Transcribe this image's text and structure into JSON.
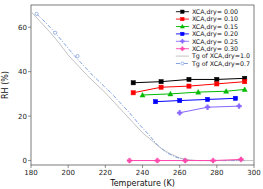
{
  "chart_data": {
    "type": "line",
    "xlabel": "Temperature (K)",
    "ylabel": "RH (%)",
    "xlim": [
      180,
      300
    ],
    "ylim": [
      -2,
      70
    ],
    "xticks": [
      180,
      200,
      220,
      240,
      260,
      280,
      300
    ],
    "yticks": [
      0,
      20,
      40,
      60
    ],
    "grid": false,
    "legend": "upper right",
    "series": [
      {
        "name": "XCA,dry= 0.00",
        "color": "#000000",
        "marker": "square",
        "line_style": "solid",
        "x": [
          235,
          250,
          265,
          280,
          295
        ],
        "values": [
          35.0,
          35.5,
          36.5,
          36.5,
          37.0
        ]
      },
      {
        "name": "XCA,dry= 0.10",
        "color": "#ff0000",
        "marker": "square",
        "line_style": "solid",
        "x": [
          235,
          250,
          265,
          280,
          295
        ],
        "values": [
          30.5,
          33.0,
          33.5,
          34.5,
          35.5
        ]
      },
      {
        "name": "XCA,dry= 0.15",
        "color": "#00bb00",
        "marker": "triangle",
        "line_style": "solid",
        "x": [
          240,
          255,
          270,
          285,
          295
        ],
        "values": [
          29.5,
          30.0,
          30.8,
          31.2,
          32.0
        ]
      },
      {
        "name": "XCA,dry= 0.20",
        "color": "#0000ff",
        "marker": "square",
        "line_style": "solid",
        "x": [
          247,
          260,
          275,
          290
        ],
        "values": [
          26.5,
          27.0,
          27.5,
          28.0
        ]
      },
      {
        "name": "XCA,dry= 0.25",
        "color": "#8866ff",
        "marker": "plus",
        "line_style": "solid",
        "x": [
          260,
          275,
          292
        ],
        "values": [
          21.5,
          24.0,
          24.5
        ]
      },
      {
        "name": "XCA,dry= 0.30",
        "color": "#ff44aa",
        "marker": "plus",
        "line_style": "solid",
        "x": [
          233,
          248,
          263,
          278,
          293
        ],
        "values": [
          0.0,
          0.0,
          0.0,
          0.0,
          0.5
        ]
      },
      {
        "name": "Tg of XCA,dry=1.0",
        "color": "#bbbbbb",
        "marker": "none",
        "line_style": "solid",
        "x": [
          180,
          185,
          190,
          195,
          200,
          205,
          210,
          215,
          220,
          225,
          230,
          235,
          240,
          245,
          250,
          255,
          260,
          265,
          270,
          280,
          290,
          300
        ],
        "values": [
          67.0,
          62.5,
          58.0,
          53.0,
          47.5,
          43.0,
          38.5,
          34.5,
          30.5,
          26.0,
          21.5,
          17.0,
          12.5,
          9.0,
          5.5,
          3.0,
          1.2,
          0.3,
          0.0,
          0.0,
          0.0,
          0.0
        ]
      },
      {
        "name": "Tg of XCA,dry=0.7",
        "color": "#7799dd",
        "marker": "circle",
        "line_style": "dashdot",
        "x": [
          183,
          188,
          193,
          198,
          203,
          208,
          213,
          218,
          223,
          228,
          233,
          238,
          243,
          248,
          253,
          258,
          263,
          268,
          275,
          285,
          295
        ],
        "values": [
          66.0,
          62.0,
          57.5,
          52.5,
          47.5,
          43.0,
          38.5,
          34.5,
          30.5,
          26.0,
          21.5,
          16.5,
          12.0,
          7.0,
          3.5,
          1.5,
          0.3,
          0.0,
          0.0,
          0.0,
          0.0
        ],
        "marker_points": {
          "x": [
            183,
            193,
            205
          ],
          "values": [
            66.0,
            57.5,
            47.0
          ]
        }
      }
    ]
  }
}
